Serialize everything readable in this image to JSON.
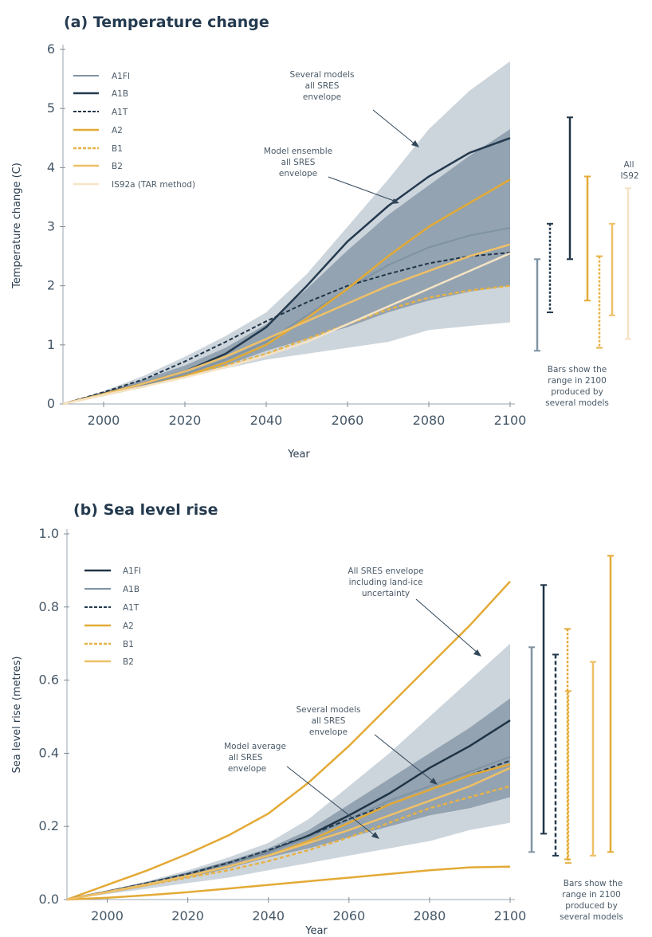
{
  "chart_data": [
    {
      "type": "line",
      "title": "(a) Temperature change",
      "xlabel": "Year",
      "ylabel": "Temperature change (C)",
      "xlim": [
        1990,
        2100
      ],
      "ylim": [
        0,
        6
      ],
      "xticks": [
        "2000",
        "2020",
        "2040",
        "2060",
        "2080",
        "2100"
      ],
      "yticks": [
        "0",
        "1",
        "2",
        "3",
        "4",
        "5",
        "6"
      ],
      "bands": [
        {
          "label": "Several models all SRES envelope",
          "color": "#cdd5dc",
          "x": [
            1990,
            2000,
            2010,
            2020,
            2030,
            2040,
            2050,
            2060,
            2070,
            2080,
            2090,
            2100
          ],
          "lower": [
            0,
            0.13,
            0.28,
            0.45,
            0.6,
            0.75,
            0.85,
            0.95,
            1.05,
            1.25,
            1.32,
            1.38
          ],
          "upper": [
            0,
            0.22,
            0.48,
            0.8,
            1.15,
            1.55,
            2.2,
            3.0,
            3.8,
            4.65,
            5.3,
            5.8
          ]
        },
        {
          "label": "Model ensemble all SRES envelope",
          "color": "#93a3b1",
          "x": [
            1990,
            2000,
            2010,
            2020,
            2030,
            2040,
            2050,
            2060,
            2070,
            2080,
            2090,
            2100
          ],
          "lower": [
            0,
            0.15,
            0.3,
            0.47,
            0.65,
            0.9,
            1.1,
            1.3,
            1.55,
            1.75,
            1.9,
            2.0
          ],
          "upper": [
            0,
            0.2,
            0.42,
            0.65,
            0.95,
            1.35,
            1.95,
            2.6,
            3.2,
            3.7,
            4.2,
            4.65
          ]
        }
      ],
      "series": [
        {
          "name": "A1FI",
          "color": "#7f93a3",
          "dash": "",
          "width": 2,
          "x": [
            1990,
            2000,
            2010,
            2020,
            2030,
            2040,
            2050,
            2060,
            2070,
            2080,
            2090,
            2100
          ],
          "values": [
            0,
            0.17,
            0.32,
            0.5,
            0.75,
            1.05,
            1.5,
            1.95,
            2.35,
            2.65,
            2.85,
            2.98
          ]
        },
        {
          "name": "A1B",
          "color": "#243a4f",
          "dash": "",
          "width": 2.5,
          "x": [
            1990,
            2000,
            2010,
            2020,
            2030,
            2040,
            2050,
            2060,
            2070,
            2080,
            2090,
            2100
          ],
          "values": [
            0,
            0.18,
            0.35,
            0.55,
            0.85,
            1.3,
            2.0,
            2.75,
            3.35,
            3.85,
            4.25,
            4.5
          ]
        },
        {
          "name": "A1T",
          "color": "#1f3447",
          "dash": "5,3",
          "width": 2,
          "x": [
            1990,
            2000,
            2010,
            2020,
            2030,
            2040,
            2050,
            2060,
            2070,
            2080,
            2090,
            2100
          ],
          "values": [
            0,
            0.2,
            0.42,
            0.72,
            1.05,
            1.4,
            1.72,
            2.0,
            2.2,
            2.38,
            2.5,
            2.56
          ]
        },
        {
          "name": "A2",
          "color": "#e3aa35",
          "dash": "",
          "width": 2.5,
          "x": [
            1990,
            2000,
            2010,
            2020,
            2030,
            2040,
            2050,
            2060,
            2070,
            2080,
            2090,
            2100
          ],
          "values": [
            0,
            0.16,
            0.3,
            0.47,
            0.7,
            1.0,
            1.45,
            1.95,
            2.5,
            3.0,
            3.4,
            3.8
          ]
        },
        {
          "name": "B1",
          "color": "#e6b247",
          "dash": "5,3",
          "width": 2.5,
          "x": [
            1990,
            2000,
            2010,
            2020,
            2030,
            2040,
            2050,
            2060,
            2070,
            2080,
            2090,
            2100
          ],
          "values": [
            0,
            0.15,
            0.3,
            0.45,
            0.65,
            0.85,
            1.1,
            1.35,
            1.6,
            1.8,
            1.92,
            2.0
          ]
        },
        {
          "name": "B2",
          "color": "#eec068",
          "dash": "",
          "width": 2.5,
          "x": [
            1990,
            2000,
            2010,
            2020,
            2030,
            2040,
            2050,
            2060,
            2070,
            2080,
            2090,
            2100
          ],
          "values": [
            0,
            0.17,
            0.35,
            0.55,
            0.8,
            1.1,
            1.4,
            1.7,
            2.0,
            2.25,
            2.5,
            2.7
          ]
        },
        {
          "name": "IS92a (TAR method)",
          "color": "#f5e3c4",
          "dash": "",
          "width": 2.5,
          "x": [
            1990,
            2000,
            2010,
            2020,
            2030,
            2040,
            2050,
            2060,
            2070,
            2080,
            2090,
            2100
          ],
          "values": [
            0,
            0.15,
            0.3,
            0.45,
            0.62,
            0.82,
            1.05,
            1.35,
            1.65,
            1.95,
            2.25,
            2.55
          ]
        }
      ],
      "annotations": [
        "Several models all SRES envelope",
        "Model ensemble all SRES envelope"
      ],
      "side_bars": [
        {
          "series": "A1FI",
          "color": "#7f93a3",
          "dash": "",
          "low": 0.9,
          "high": 2.45
        },
        {
          "series": "A1T",
          "color": "#243a4f",
          "dash": "3,2",
          "low": 1.55,
          "high": 3.05
        },
        {
          "series": "A1B",
          "color": "#1f3447",
          "dash": "",
          "low": 2.45,
          "high": 4.85
        },
        {
          "series": "A2",
          "color": "#e3aa35",
          "dash": "",
          "low": 1.75,
          "high": 3.85
        },
        {
          "series": "B1",
          "color": "#e6b247",
          "dash": "3,2",
          "low": 0.95,
          "high": 2.5
        },
        {
          "series": "B2",
          "color": "#eec068",
          "dash": "",
          "low": 1.5,
          "high": 3.05
        },
        {
          "series": "All IS92",
          "color": "#f5e3c4",
          "dash": "",
          "low": 1.1,
          "high": 3.65
        }
      ],
      "side_bar_label": "All IS92",
      "bars_note": [
        "Bars show the",
        "range in 2100",
        "produced by",
        "several models"
      ]
    },
    {
      "type": "line",
      "title": "(b) Sea level rise",
      "xlabel": "Year",
      "ylabel": "Sea level rise (metres)",
      "xlim": [
        1990,
        2100
      ],
      "ylim": [
        0,
        1.0
      ],
      "xticks": [
        "2000",
        "2020",
        "2040",
        "2060",
        "2080",
        "2100"
      ],
      "yticks": [
        "0.0",
        "0.2",
        "0.4",
        "0.6",
        "0.8",
        "1.0"
      ],
      "bands": [
        {
          "label": "Several models all SRES envelope",
          "color": "#cdd5dc",
          "x": [
            1990,
            2000,
            2010,
            2020,
            2030,
            2040,
            2050,
            2060,
            2070,
            2080,
            2090,
            2100
          ],
          "lower": [
            0,
            0.015,
            0.03,
            0.045,
            0.06,
            0.08,
            0.1,
            0.12,
            0.14,
            0.16,
            0.19,
            0.21
          ],
          "upper": [
            0,
            0.025,
            0.05,
            0.08,
            0.115,
            0.155,
            0.22,
            0.31,
            0.4,
            0.5,
            0.6,
            0.7
          ]
        },
        {
          "label": "Model average all SRES envelope",
          "color": "#93a3b1",
          "x": [
            1990,
            2000,
            2010,
            2020,
            2030,
            2040,
            2050,
            2060,
            2070,
            2080,
            2090,
            2100
          ],
          "lower": [
            0,
            0.02,
            0.04,
            0.06,
            0.085,
            0.115,
            0.14,
            0.17,
            0.2,
            0.23,
            0.25,
            0.28
          ],
          "upper": [
            0,
            0.024,
            0.048,
            0.075,
            0.105,
            0.14,
            0.19,
            0.26,
            0.33,
            0.4,
            0.47,
            0.55
          ]
        }
      ],
      "series": [
        {
          "name": "A1FI",
          "color": "#1f3447",
          "dash": "",
          "width": 2.5,
          "x": [
            1990,
            2000,
            2010,
            2020,
            2030,
            2040,
            2050,
            2060,
            2070,
            2080,
            2090,
            2100
          ],
          "values": [
            0,
            0.022,
            0.045,
            0.07,
            0.1,
            0.13,
            0.175,
            0.23,
            0.29,
            0.36,
            0.42,
            0.49
          ]
        },
        {
          "name": "A1B",
          "color": "#7f93a3",
          "dash": "",
          "width": 2,
          "x": [
            1990,
            2000,
            2010,
            2020,
            2030,
            2040,
            2050,
            2060,
            2070,
            2080,
            2090,
            2100
          ],
          "values": [
            0,
            0.022,
            0.045,
            0.07,
            0.1,
            0.13,
            0.17,
            0.22,
            0.27,
            0.31,
            0.35,
            0.39
          ]
        },
        {
          "name": "A1T",
          "color": "#243a4f",
          "dash": "6,3",
          "width": 2,
          "x": [
            1990,
            2000,
            2010,
            2020,
            2030,
            2040,
            2050,
            2060,
            2070,
            2080,
            2090,
            2100
          ],
          "values": [
            0,
            0.022,
            0.045,
            0.07,
            0.1,
            0.135,
            0.175,
            0.22,
            0.26,
            0.3,
            0.34,
            0.38
          ]
        },
        {
          "name": "A2",
          "color": "#e3aa35",
          "dash": "",
          "width": 2.5,
          "x": [
            1990,
            2000,
            2010,
            2020,
            2030,
            2040,
            2050,
            2060,
            2070,
            2080,
            2090,
            2100
          ],
          "values": [
            0,
            0.02,
            0.04,
            0.065,
            0.09,
            0.12,
            0.16,
            0.21,
            0.26,
            0.3,
            0.34,
            0.37
          ]
        },
        {
          "name": "B1",
          "color": "#e6b247",
          "dash": "5,3",
          "width": 2.5,
          "x": [
            1990,
            2000,
            2010,
            2020,
            2030,
            2040,
            2050,
            2060,
            2070,
            2080,
            2090,
            2100
          ],
          "values": [
            0,
            0.02,
            0.04,
            0.06,
            0.08,
            0.105,
            0.135,
            0.17,
            0.21,
            0.25,
            0.28,
            0.31
          ]
        },
        {
          "name": "B2",
          "color": "#eec068",
          "dash": "",
          "width": 2.5,
          "x": [
            1990,
            2000,
            2010,
            2020,
            2030,
            2040,
            2050,
            2060,
            2070,
            2080,
            2090,
            2100
          ],
          "values": [
            0,
            0.021,
            0.042,
            0.065,
            0.09,
            0.12,
            0.155,
            0.19,
            0.23,
            0.27,
            0.31,
            0.36
          ]
        }
      ],
      "envelope_lines": [
        {
          "label": "All SRES envelope including land-ice uncertainty",
          "color": "#e3aa35",
          "x": [
            1990,
            2000,
            2010,
            2020,
            2030,
            2040,
            2050,
            2060,
            2070,
            2080,
            2090,
            2100
          ],
          "upper": [
            0,
            0.04,
            0.08,
            0.125,
            0.175,
            0.235,
            0.32,
            0.42,
            0.53,
            0.64,
            0.75,
            0.87
          ],
          "lower": [
            0,
            0.005,
            0.012,
            0.02,
            0.03,
            0.04,
            0.05,
            0.06,
            0.07,
            0.08,
            0.088,
            0.09
          ]
        }
      ],
      "annotations": [
        "All SRES envelope including land-ice uncertainty",
        "Several models all SRES envelope",
        "Model average all SRES envelope"
      ],
      "side_bars": [
        {
          "series": "A1B",
          "color": "#7f93a3",
          "dash": "",
          "low": 0.13,
          "high": 0.69
        },
        {
          "series": "A1FI",
          "color": "#1f3447",
          "dash": "",
          "low": 0.18,
          "high": 0.86
        },
        {
          "series": "A1T",
          "color": "#243a4f",
          "dash": "5,3",
          "low": 0.12,
          "high": 0.67
        },
        {
          "series": "B1",
          "color": "#e6b247",
          "dash": "3,2",
          "low": 0.1,
          "high": 0.57
        },
        {
          "series": "B2",
          "color": "#eec068",
          "dash": "",
          "low": 0.12,
          "high": 0.65
        },
        {
          "series": "A2",
          "color": "#e3aa35",
          "dash": "3,2",
          "low": 0.11,
          "high": 0.74
        },
        {
          "series": "A2",
          "color": "#e3aa35",
          "dash": "",
          "low": 0.13,
          "high": 0.94
        }
      ],
      "bars_note": [
        "Bars show the",
        "range in 2100",
        "produced by",
        "several models"
      ]
    }
  ]
}
